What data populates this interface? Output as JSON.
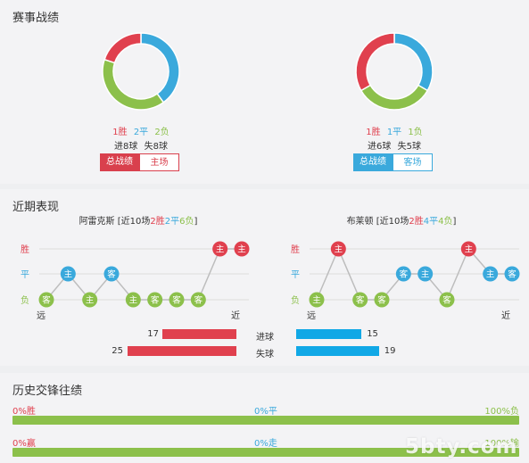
{
  "record": {
    "title": "赛事战绩",
    "left": {
      "win": "1胜",
      "draw": "2平",
      "loss": "2负",
      "goals": "进8球",
      "conceded": "失8球",
      "tab_active": "总战绩",
      "tab_other": "主场",
      "donut": {
        "win": 1,
        "draw": 2,
        "loss": 2
      }
    },
    "right": {
      "win": "1胜",
      "draw": "1平",
      "loss": "1负",
      "goals": "进6球",
      "conceded": "失5球",
      "tab_active": "总战绩",
      "tab_other": "客场",
      "donut": {
        "win": 1,
        "draw": 1,
        "loss": 1
      }
    }
  },
  "recent": {
    "title": "近期表现",
    "row_labels": {
      "win": "胜",
      "draw": "平",
      "loss": "负"
    },
    "left": {
      "team": "阿雷克斯",
      "summary_prefix": "[近10场",
      "wins": "2胜",
      "draws": "2平",
      "losses": "6负",
      "summary_suffix": "]",
      "far": "远",
      "near": "近",
      "matches": [
        {
          "result": "loss",
          "venue": "客"
        },
        {
          "result": "draw",
          "venue": "主"
        },
        {
          "result": "loss",
          "venue": "主"
        },
        {
          "result": "draw",
          "venue": "客"
        },
        {
          "result": "loss",
          "venue": "主"
        },
        {
          "result": "loss",
          "venue": "客"
        },
        {
          "result": "loss",
          "venue": "客"
        },
        {
          "result": "loss",
          "venue": "客"
        },
        {
          "result": "win",
          "venue": "主"
        },
        {
          "result": "win",
          "venue": "主"
        }
      ]
    },
    "right": {
      "team": "布莱顿",
      "summary_prefix": "[近10场",
      "wins": "2胜",
      "draws": "4平",
      "losses": "4负",
      "summary_suffix": "]",
      "far": "远",
      "near": "近",
      "matches": [
        {
          "result": "loss",
          "venue": "主"
        },
        {
          "result": "win",
          "venue": "主"
        },
        {
          "result": "loss",
          "venue": "客"
        },
        {
          "result": "loss",
          "venue": "客"
        },
        {
          "result": "draw",
          "venue": "客"
        },
        {
          "result": "draw",
          "venue": "主"
        },
        {
          "result": "loss",
          "venue": "客"
        },
        {
          "result": "win",
          "venue": "主"
        },
        {
          "result": "draw",
          "venue": "主"
        },
        {
          "result": "draw",
          "venue": "客"
        }
      ]
    },
    "goals": {
      "label_for": "进球",
      "label_against": "失球",
      "left_for": 17,
      "left_against": 25,
      "right_for": 15,
      "right_against": 19,
      "max": 25
    }
  },
  "history": {
    "title": "历史交锋往绩",
    "row1": {
      "left": "0%胜",
      "mid": "0%平",
      "right": "100%负"
    },
    "row2": {
      "left": "0%赢",
      "mid": "0%走",
      "right": "100%输"
    }
  },
  "watermark": "5bty.com",
  "colors": {
    "win": "#e0404e",
    "draw": "#3aa9dc",
    "loss": "#8cc04b"
  }
}
